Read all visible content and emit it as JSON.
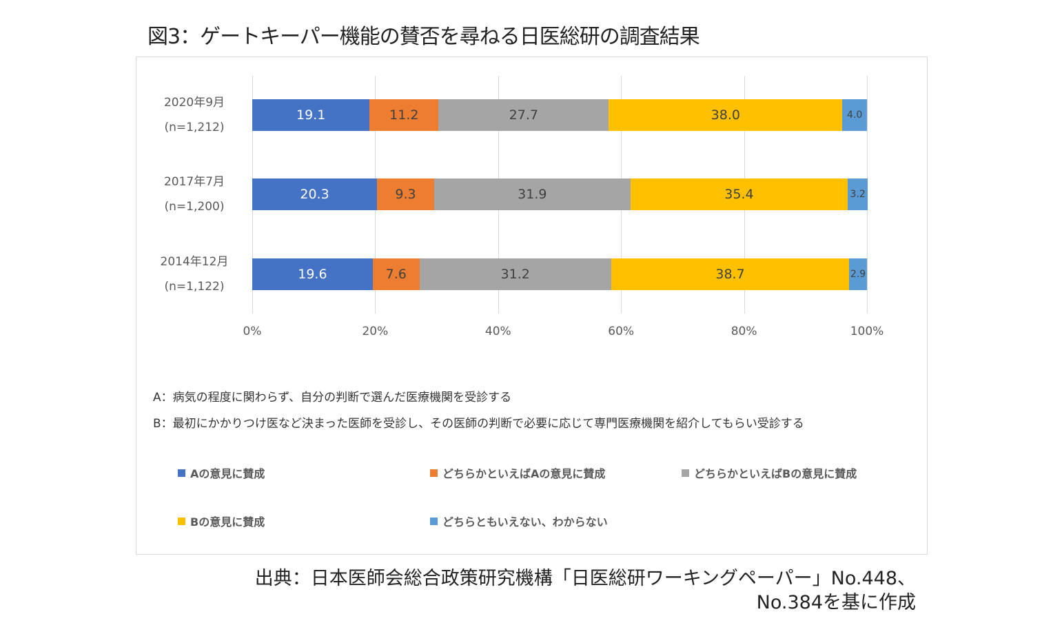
{
  "title": "図3：ゲートキーパー機能の賛否を尋ねる日医総研の調査結果",
  "chart_data": {
    "type": "bar",
    "orientation": "horizontal-stacked-100",
    "categories": [
      {
        "label": "2020年9月",
        "n": "(n=1,212)"
      },
      {
        "label": "2017年7月",
        "n": "(n=1,200)"
      },
      {
        "label": "2014年12月",
        "n": "(n=1,122)"
      }
    ],
    "series": [
      {
        "name": "Aの意見に賛成",
        "color": "#4472C4",
        "values": [
          19.1,
          20.3,
          19.6
        ],
        "labels": [
          "19.1",
          "20.3",
          "19.6"
        ]
      },
      {
        "name": "どちらかといえばAの意見に賛成",
        "color": "#ED7D31",
        "values": [
          11.2,
          9.3,
          7.6
        ],
        "labels": [
          "11.2",
          "9.3",
          "7.6"
        ]
      },
      {
        "name": "どちらかといえばBの意見に賛成",
        "color": "#A5A5A5",
        "values": [
          27.7,
          31.9,
          31.2
        ],
        "labels": [
          "27.7",
          "31.9",
          "31.2"
        ]
      },
      {
        "name": "Bの意見に賛成",
        "color": "#FFC000",
        "values": [
          38.0,
          35.4,
          38.7
        ],
        "labels": [
          "38.0",
          "35.4",
          "38.7"
        ]
      },
      {
        "name": "どちらともいえない、わからない",
        "color": "#5B9BD5",
        "values": [
          4.0,
          3.2,
          2.9
        ],
        "labels": [
          "4.0",
          "3.2",
          "2.9"
        ]
      }
    ],
    "xlim": [
      0,
      100
    ],
    "xticks": [
      "0%",
      "20%",
      "40%",
      "60%",
      "80%",
      "100%"
    ],
    "grid": true,
    "legend": "bottom"
  },
  "notes": {
    "a": "A：病気の程度に関わらず、自分の判断で選んだ医療機関を受診する",
    "b": "B：最初にかかりつけ医など決まった医師を受診し、その医師の判断で必要に応じて専門医療機関を紹介してもらい受診する"
  },
  "source": {
    "line1": "出典：日本医師会総合政策研究機構「日医総研ワーキングペーパー」No.448、",
    "line2": "No.384を基に作成"
  }
}
